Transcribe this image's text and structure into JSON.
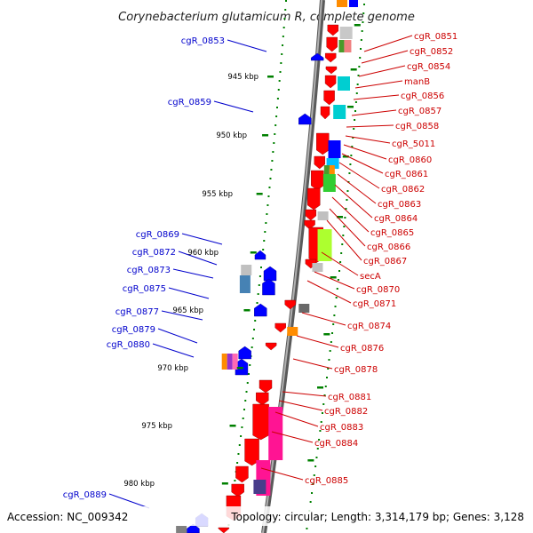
{
  "title": "Corynebacterium glutamicum R, complete genome",
  "footer": {
    "accession": "Accession: NC_009342",
    "topology": "Topology: circular; Length: 3,314,179 bp; Genes: 3,128"
  },
  "colors": {
    "backbone": "#7f7f7f",
    "forward_gene": "#ff0000",
    "reverse_gene": "#0000ff",
    "left_label": "#0000cc",
    "right_label": "#cc0000",
    "gc_dots": "#008000"
  },
  "scale_labels": [
    "945 kbp",
    "950 kbp",
    "955 kbp",
    "960 kbp",
    "965 kbp",
    "970 kbp",
    "975 kbp",
    "980 kbp"
  ],
  "left_genes": [
    "cgR_0853",
    "cgR_0859",
    "cgR_0869",
    "cgR_0872",
    "cgR_0873",
    "cgR_0875",
    "cgR_0877",
    "cgR_0879",
    "cgR_0880",
    "cgR_0889"
  ],
  "right_genes": [
    "cgR_0851",
    "cgR_0852",
    "cgR_0854",
    "manB",
    "cgR_0856",
    "cgR_0857",
    "cgR_0858",
    "cgR_5011",
    "cgR_0860",
    "cgR_0861",
    "cgR_0862",
    "cgR_0863",
    "cgR_0864",
    "cgR_0865",
    "cgR_0866",
    "cgR_0867",
    "secA",
    "cgR_0870",
    "cgR_0871",
    "cgR_0874",
    "cgR_0876",
    "cgR_0878",
    "cgR_0881",
    "cgR_0882",
    "cgR_0883",
    "cgR_0884",
    "cgR_0885"
  ]
}
